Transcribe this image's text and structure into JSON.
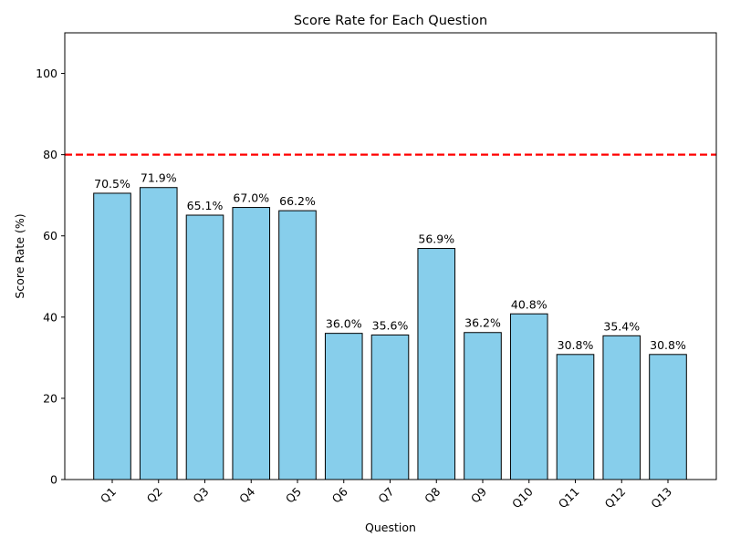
{
  "chart_data": {
    "type": "bar",
    "title": "Score Rate for Each Question",
    "xlabel": "Question",
    "ylabel": "Score Rate (%)",
    "ylim": [
      0,
      110
    ],
    "yticks": [
      0,
      20,
      40,
      60,
      80,
      100
    ],
    "categories": [
      "Q1",
      "Q2",
      "Q3",
      "Q4",
      "Q5",
      "Q6",
      "Q7",
      "Q8",
      "Q9",
      "Q10",
      "Q11",
      "Q12",
      "Q13"
    ],
    "values": [
      70.5,
      71.9,
      65.1,
      67.0,
      66.2,
      36.0,
      35.6,
      56.9,
      36.2,
      40.8,
      30.8,
      35.4,
      30.8
    ],
    "data_labels": [
      "70.5%",
      "71.9%",
      "65.1%",
      "67.0%",
      "66.2%",
      "36.0%",
      "35.6%",
      "56.9%",
      "36.2%",
      "40.8%",
      "30.8%",
      "35.4%",
      "30.8%"
    ],
    "reference_line": {
      "value": 80,
      "color": "#ff0000",
      "style": "dashed"
    },
    "bar_color": "#87ceeb",
    "bar_edge_color": "#000000",
    "grid": false,
    "legend": "none"
  }
}
